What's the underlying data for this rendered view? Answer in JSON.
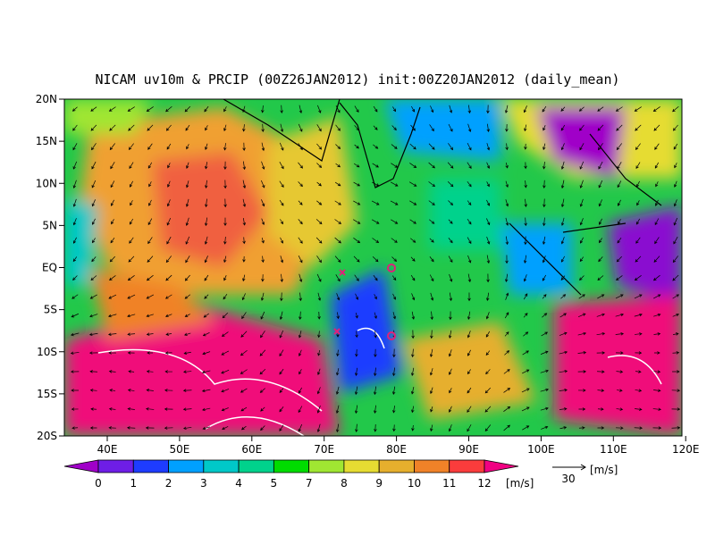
{
  "header": {
    "title": "NICAM uv10m & PRCIP (00Z26JAN2012) init:00Z20JAN2012 (daily_mean)"
  },
  "map": {
    "lat_labels": [
      "20N",
      "15N",
      "10N",
      "5N",
      "EQ",
      "5S",
      "10S",
      "15S",
      "20S"
    ],
    "lon_labels": [
      "40E",
      "50E",
      "60E",
      "70E",
      "80E",
      "90E",
      "100E",
      "110E",
      "120E"
    ]
  },
  "colorbar": {
    "labels": [
      "0",
      "1",
      "2",
      "3",
      "4",
      "5",
      "7",
      "8",
      "9",
      "10",
      "11",
      "12"
    ],
    "colors": [
      "#a000c8",
      "#6e1ee6",
      "#1e3cff",
      "#00a0ff",
      "#00c8c8",
      "#00d28c",
      "#00dc00",
      "#a0e632",
      "#e6dc32",
      "#e6af2d",
      "#f08228",
      "#fa3c3c",
      "#f00082"
    ],
    "unit": "[m/s]"
  },
  "reference_vector": {
    "label": "30",
    "unit": "[m/s]"
  }
}
